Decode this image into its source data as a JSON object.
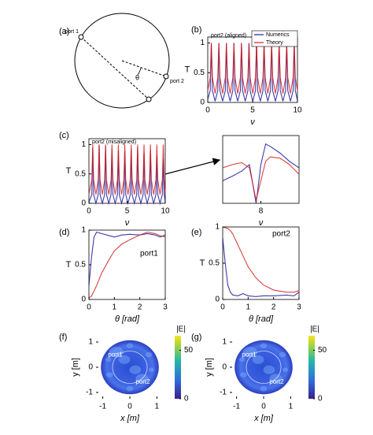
{
  "chart_data": [
    {
      "type": "diagram",
      "panel_label": "(a)",
      "labels": [
        "port 1",
        "port 2",
        "θ"
      ]
    },
    {
      "type": "line",
      "panel_label": "(b)",
      "annotation": "port2 (aligned)",
      "xlabel": "ν",
      "ylabel": "T",
      "xlim": [
        0,
        10
      ],
      "xticks": [
        0,
        5,
        10
      ],
      "ylim": [
        0,
        1.1
      ],
      "yticks": [
        0,
        0.5,
        1
      ],
      "legend": "upper right",
      "x": [
        0,
        0.28,
        0.4,
        0.52,
        0.82,
        1.12,
        1.24,
        1.36,
        1.66,
        1.96,
        2.08,
        2.2,
        2.5,
        2.8,
        2.92,
        3.04,
        3.34,
        3.64,
        3.76,
        3.88,
        4.18,
        4.48,
        4.6,
        4.72,
        5.02,
        5.32,
        5.44,
        5.56,
        5.86,
        6.16,
        6.28,
        6.4,
        6.7,
        7.0,
        7.12,
        7.24,
        7.54,
        7.84,
        7.96,
        8.08,
        8.38,
        8.68,
        8.8,
        8.92,
        9.22,
        9.52,
        9.64,
        9.76,
        10
      ],
      "series": [
        {
          "name": "Numerics",
          "color": "#1a1a9c",
          "values": [
            0.05,
            0.2,
            1,
            0.2,
            0.02,
            0.2,
            1,
            0.2,
            0.02,
            0.2,
            1,
            0.2,
            0.02,
            0.2,
            1,
            0.2,
            0.02,
            0.2,
            1,
            0.2,
            0.02,
            0.2,
            1,
            0.2,
            0.02,
            0.2,
            1,
            0.2,
            0.02,
            0.2,
            1,
            0.2,
            0.02,
            0.2,
            1,
            0.2,
            0.02,
            0.2,
            1,
            0.2,
            0.02,
            0.2,
            1,
            0.2,
            0.02,
            0.2,
            1,
            0.2,
            0.03
          ]
        },
        {
          "name": "Theory",
          "color": "#d62020",
          "values": [
            0.2,
            0.42,
            1,
            0.42,
            0.15,
            0.42,
            1,
            0.42,
            0.15,
            0.42,
            1,
            0.42,
            0.15,
            0.42,
            1,
            0.42,
            0.15,
            0.42,
            1,
            0.42,
            0.15,
            0.42,
            1,
            0.42,
            0.15,
            0.42,
            1,
            0.42,
            0.15,
            0.42,
            1,
            0.42,
            0.15,
            0.42,
            1,
            0.42,
            0.15,
            0.42,
            1,
            0.42,
            0.15,
            0.42,
            1,
            0.42,
            0.15,
            0.42,
            1,
            0.42,
            0.2
          ]
        }
      ]
    },
    {
      "type": "line",
      "panel_label": "(c)",
      "annotation": "port2 (misaligned)",
      "xlabel": "ν",
      "ylabel": "T",
      "xlim": [
        0,
        10
      ],
      "xticks": [
        0,
        5,
        10
      ],
      "ylim": [
        0,
        1.1
      ],
      "yticks": [
        0,
        0.5,
        1
      ],
      "x": [
        0,
        0.38,
        0.5,
        0.62,
        0.92,
        1.22,
        1.34,
        1.46,
        1.76,
        2.06,
        2.18,
        2.3,
        2.6,
        2.9,
        3.02,
        3.14,
        3.44,
        3.74,
        3.86,
        3.98,
        4.28,
        4.58,
        4.7,
        4.82,
        5.12,
        5.42,
        5.54,
        5.66,
        5.96,
        6.26,
        6.38,
        6.5,
        6.8,
        7.1,
        7.22,
        7.34,
        7.64,
        7.94,
        8.06,
        8.18,
        8.48,
        8.78,
        8.9,
        9.02,
        9.32,
        9.62,
        9.74,
        9.86,
        10
      ],
      "series": [
        {
          "name": "Numerics",
          "color": "#1a1a9c",
          "values": [
            0.02,
            0.15,
            0.95,
            0.15,
            0,
            0.15,
            1,
            0.15,
            0,
            0.15,
            0.98,
            0.15,
            0,
            0.15,
            0.92,
            0.15,
            0,
            0.15,
            0.9,
            0.15,
            0,
            0.15,
            0.88,
            0.15,
            0,
            0.15,
            0.92,
            0.15,
            0,
            0.15,
            0.95,
            0.15,
            0,
            0.15,
            0.85,
            0.15,
            0,
            0.15,
            0.9,
            0.15,
            0,
            0.15,
            0.8,
            0.15,
            0,
            0.15,
            0.75,
            0.15,
            0.02
          ]
        },
        {
          "name": "Theory",
          "color": "#d62020",
          "values": [
            0.15,
            0.4,
            1,
            0.4,
            0.15,
            0.4,
            1,
            0.4,
            0.15,
            0.4,
            1,
            0.4,
            0.15,
            0.4,
            1,
            0.4,
            0.15,
            0.4,
            1,
            0.4,
            0.15,
            0.4,
            1,
            0.4,
            0.15,
            0.4,
            1,
            0.4,
            0.15,
            0.4,
            1,
            0.4,
            0.15,
            0.4,
            1,
            0.4,
            0.15,
            0.4,
            1,
            0.4,
            0.15,
            0.4,
            1,
            0.4,
            0.15,
            0.4,
            1,
            0.4,
            0.2
          ]
        }
      ]
    },
    {
      "type": "line",
      "xlabel": "ν",
      "xlim": [
        7.6,
        8.4
      ],
      "xticks": [
        8
      ],
      "ylim": [
        0,
        1.05
      ],
      "x": [
        7.6,
        7.7,
        7.8,
        7.88,
        7.95,
        8.0,
        8.05,
        8.1,
        8.2,
        8.3,
        8.4
      ],
      "series": [
        {
          "name": "Numerics",
          "color": "#1a1a9c",
          "values": [
            0.35,
            0.42,
            0.5,
            0.6,
            0,
            0.6,
            0.92,
            0.88,
            0.78,
            0.65,
            0.55
          ]
        },
        {
          "name": "Theory",
          "color": "#d62020",
          "values": [
            0.55,
            0.6,
            0.63,
            0.55,
            0.05,
            0.35,
            0.65,
            0.72,
            0.7,
            0.6,
            0.45
          ]
        }
      ]
    },
    {
      "type": "line",
      "panel_label": "(d)",
      "annotation": "port1",
      "xlabel": "θ [rad]",
      "ylabel": "T",
      "xlim": [
        0,
        3
      ],
      "xticks": [
        0,
        1,
        2,
        3
      ],
      "ylim": [
        0,
        1
      ],
      "yticks": [
        0,
        0.5,
        1
      ],
      "x": [
        0,
        0.1,
        0.2,
        0.3,
        0.5,
        0.8,
        1.0,
        1.3,
        1.6,
        2.0,
        2.3,
        2.6,
        2.8,
        3.0
      ],
      "series": [
        {
          "name": "Numerics",
          "color": "#1a1a9c",
          "values": [
            0.2,
            0.6,
            0.9,
            0.97,
            0.95,
            0.92,
            0.9,
            0.93,
            0.94,
            0.93,
            0.95,
            0.93,
            0.9,
            0.93
          ]
        },
        {
          "name": "Theory",
          "color": "#d62020",
          "values": [
            0.02,
            0.05,
            0.12,
            0.2,
            0.38,
            0.58,
            0.7,
            0.8,
            0.86,
            0.93,
            0.97,
            0.95,
            0.92,
            0.9
          ]
        }
      ]
    },
    {
      "type": "line",
      "panel_label": "(e)",
      "annotation": "port2",
      "xlabel": "θ [rad]",
      "ylabel": "T",
      "xlim": [
        0,
        3
      ],
      "xticks": [
        0,
        1,
        2,
        3
      ],
      "ylim": [
        0,
        1
      ],
      "yticks": [
        0,
        0.5,
        1
      ],
      "x": [
        0,
        0.1,
        0.2,
        0.3,
        0.4,
        0.6,
        0.8,
        1.0,
        1.3,
        1.6,
        2.0,
        2.5,
        2.8,
        3.0
      ],
      "series": [
        {
          "name": "Numerics",
          "color": "#1a1a9c",
          "values": [
            0.85,
            0.5,
            0.2,
            0.1,
            0.06,
            0.05,
            0.08,
            0.05,
            0.04,
            0.05,
            0.05,
            0.06,
            0.05,
            0.1
          ]
        },
        {
          "name": "Theory",
          "color": "#d62020",
          "values": [
            1.0,
            0.99,
            0.98,
            0.95,
            0.9,
            0.75,
            0.6,
            0.45,
            0.3,
            0.2,
            0.13,
            0.1,
            0.1,
            0.12
          ]
        }
      ]
    },
    {
      "type": "field-map",
      "panel_label": "(f)",
      "xlabel": "x [m]",
      "ylabel": "y [m]",
      "xlim": [
        -1.25,
        1.25
      ],
      "xticks": [
        -1,
        0,
        1
      ],
      "ylim": [
        -1.25,
        1.25
      ],
      "yticks": [
        -1,
        0,
        1
      ],
      "colorbar_label": "|E|",
      "clim": [
        0,
        65
      ],
      "cticks": [
        0,
        50
      ],
      "annotations": [
        "port1",
        "port2"
      ]
    },
    {
      "type": "field-map",
      "panel_label": "(g)",
      "xlabel": "x [m]",
      "ylabel": "y [m]",
      "xlim": [
        -1.25,
        1.25
      ],
      "xticks": [
        -1,
        0,
        1
      ],
      "ylim": [
        -1.25,
        1.25
      ],
      "yticks": [
        -1,
        0,
        1
      ],
      "colorbar_label": "|E|",
      "clim": [
        0,
        65
      ],
      "cticks": [
        0,
        50
      ],
      "annotations": [
        "port1",
        "port2"
      ]
    }
  ]
}
